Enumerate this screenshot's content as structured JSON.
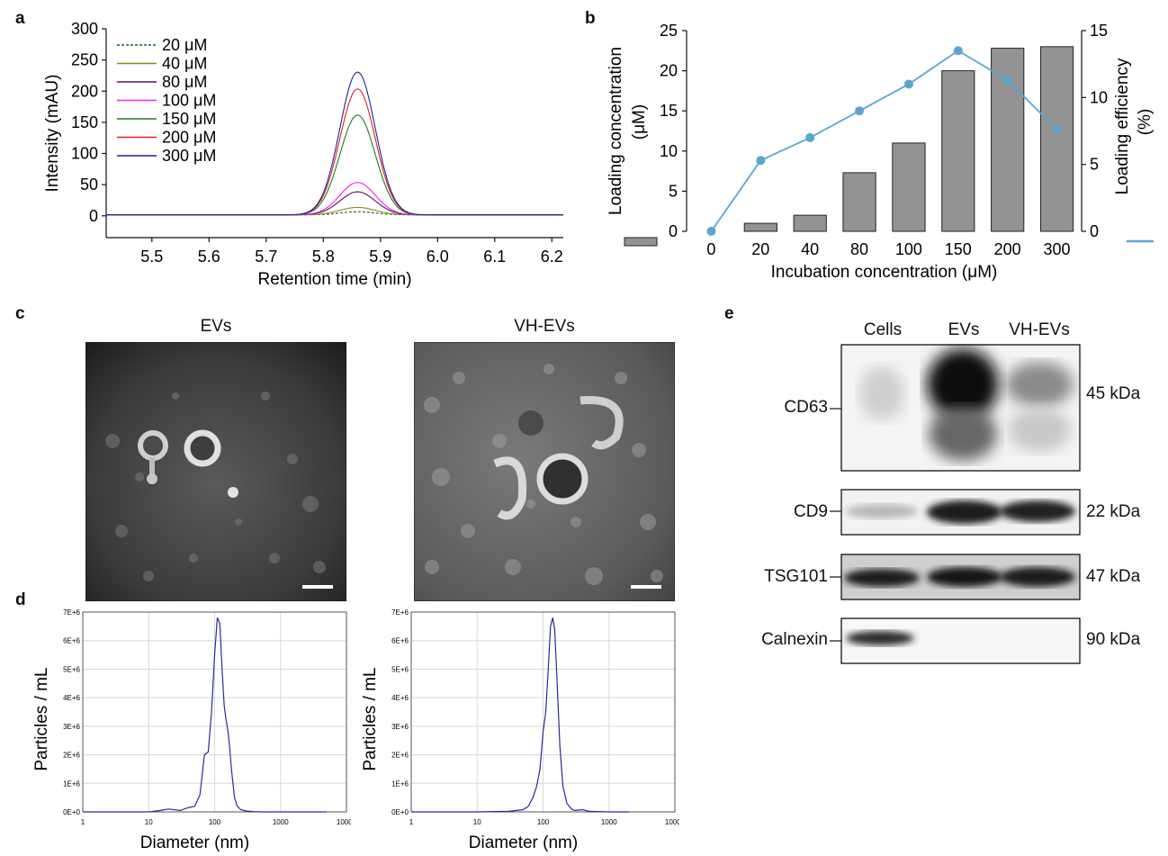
{
  "panels": {
    "a": {
      "letter": "a",
      "chart_data": {
        "type": "line",
        "xlabel": "Retention time (min)",
        "ylabel": "Intensity (mAU)",
        "xlim": [
          5.42,
          6.22
        ],
        "ylim": [
          -35,
          300
        ],
        "xticks": [
          "5.5",
          "5.6",
          "5.7",
          "5.8",
          "5.9",
          "6.0",
          "6.1",
          "6.2"
        ],
        "yticks": [
          "0",
          "50",
          "100",
          "150",
          "200",
          "250",
          "300"
        ],
        "peak_center": 5.86,
        "peak_width": 0.031,
        "legend_position": "top-left",
        "series": [
          {
            "name": "20 μM",
            "peak": 5,
            "color": "#1f5f1f",
            "dash": true
          },
          {
            "name": "40 μM",
            "peak": 12,
            "color": "#8a8a1a",
            "dash": false
          },
          {
            "name": "80 μM",
            "peak": 37,
            "color": "#5a1060",
            "dash": false
          },
          {
            "name": "100 μM",
            "peak": 52,
            "color": "#ee22ee",
            "dash": false
          },
          {
            "name": "150 μM",
            "peak": 160,
            "color": "#1e7a1e",
            "dash": false
          },
          {
            "name": "200 μM",
            "peak": 202,
            "color": "#e02020",
            "dash": false
          },
          {
            "name": "300 μM",
            "peak": 229,
            "color": "#20209a",
            "dash": false
          }
        ]
      }
    },
    "b": {
      "letter": "b",
      "chart_data": {
        "type": "bar",
        "categories": [
          "0",
          "20",
          "40",
          "80",
          "100",
          "150",
          "200",
          "300"
        ],
        "xlabel": "Incubation concentration (μM)",
        "ylabel_left": [
          "Loading concentration",
          "(μM)"
        ],
        "ylabel_right": [
          "Loading efficiency",
          "(%)"
        ],
        "ylim_left": [
          0,
          25
        ],
        "ylim_right": [
          0,
          15
        ],
        "yticks_left": [
          "0",
          "5",
          "10",
          "15",
          "20",
          "25"
        ],
        "yticks_right": [
          "0",
          "5",
          "10",
          "15"
        ],
        "bar_color": "#939393",
        "line_color": "#5aa6d2",
        "series": [
          {
            "type": "bar",
            "axis": "left",
            "values": [
              0,
              1.0,
              2.0,
              7.3,
              11.0,
              20.0,
              22.8,
              23.0
            ]
          },
          {
            "type": "line",
            "axis": "right",
            "values": [
              0,
              5.3,
              7.0,
              9.0,
              11.0,
              13.5,
              11.3,
              7.6
            ]
          }
        ]
      }
    },
    "c": {
      "letter": "c",
      "left_title": "EVs",
      "right_title": "VH-EVs"
    },
    "d": {
      "letter": "d",
      "chart_data": [
        {
          "type": "line",
          "xlabel": "Diameter (nm)",
          "ylabel": "Particles / mL",
          "xscale": "log",
          "xlim": [
            1,
            10000
          ],
          "ylim": [
            0,
            7000000
          ],
          "xticks": [
            "1",
            "10",
            "100",
            "1000",
            "10000"
          ],
          "yticks": [
            "0E+0",
            "1E+6",
            "2E+6",
            "3E+6",
            "4E+6",
            "5E+6",
            "6E+6",
            "7E+6"
          ],
          "line_color": "#2a2a9a",
          "x": [
            1,
            10,
            15,
            20,
            30,
            40,
            50,
            60,
            70,
            80,
            90,
            100,
            110,
            120,
            130,
            140,
            150,
            160,
            170,
            180,
            200,
            220,
            250,
            300,
            400,
            500,
            1000,
            5000
          ],
          "y": [
            0,
            0,
            50000,
            100000,
            50000,
            150000,
            200000,
            600000,
            2000000,
            2100000,
            3500000,
            5500000,
            6800000,
            6600000,
            5000000,
            3700000,
            3200000,
            2800000,
            2200000,
            1500000,
            500000,
            200000,
            80000,
            30000,
            10000,
            0,
            0,
            0
          ]
        },
        {
          "type": "line",
          "xlabel": "Diameter (nm)",
          "ylabel": "Particles / mL",
          "xscale": "log",
          "xlim": [
            1,
            10000
          ],
          "ylim": [
            0,
            7000000
          ],
          "xticks": [
            "1",
            "10",
            "100",
            "1000",
            "10000"
          ],
          "yticks": [
            "0E+0",
            "1E+6",
            "2E+6",
            "3E+6",
            "4E+6",
            "5E+6",
            "6E+6",
            "7E+6"
          ],
          "line_color": "#2a2a9a",
          "x": [
            1,
            10,
            30,
            50,
            60,
            70,
            80,
            90,
            100,
            110,
            120,
            130,
            140,
            150,
            160,
            170,
            180,
            200,
            230,
            270,
            300,
            400,
            500,
            1000,
            2000
          ],
          "y": [
            0,
            0,
            20000,
            80000,
            200000,
            500000,
            900000,
            1500000,
            2800000,
            3500000,
            5000000,
            6500000,
            6800000,
            6400000,
            5000000,
            3600000,
            2300000,
            900000,
            300000,
            100000,
            50000,
            80000,
            20000,
            0,
            0
          ]
        }
      ]
    },
    "e": {
      "letter": "e",
      "lane_labels": [
        "Cells",
        "EVs",
        "VH-EVs"
      ],
      "blots": [
        {
          "protein": "CD63",
          "size": "45 kDa"
        },
        {
          "protein": "CD9",
          "size": "22 kDa"
        },
        {
          "protein": "TSG101",
          "size": "47 kDa"
        },
        {
          "protein": "Calnexin",
          "size": "90 kDa"
        }
      ]
    }
  }
}
